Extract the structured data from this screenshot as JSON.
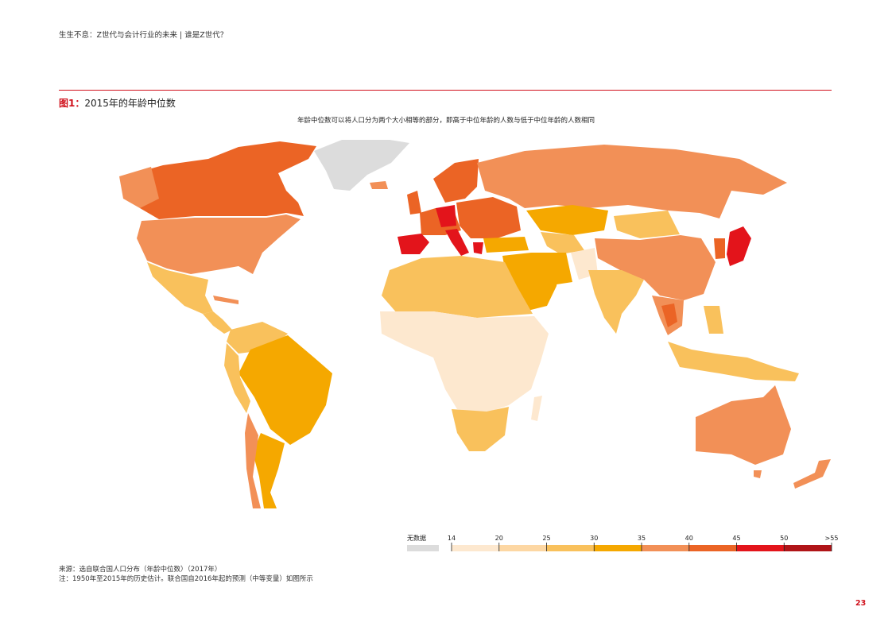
{
  "header": {
    "text": "生生不息：Z世代与会计行业的未来 | 谁是Z世代？"
  },
  "figure": {
    "label": "图1：",
    "title": "2015年的年龄中位数",
    "subtitle": "年龄中位数可以将人口分为两个大小相等的部分，即高于中位年龄的人数与低于中位年龄的人数相同"
  },
  "legend": {
    "nodata_label": "无数据",
    "nodata_color": "#dcdcdc",
    "ticks": [
      "14",
      "20",
      "25",
      "30",
      "35",
      "40",
      "45",
      "50",
      ">55"
    ],
    "colors": [
      "#fde8cf",
      "#fdd7a3",
      "#f9c15c",
      "#f5a800",
      "#f29057",
      "#eb6425",
      "#e3141b",
      "#b01418"
    ]
  },
  "source": {
    "line1": "来源：选自联合国人口分布（年龄中位数）（2017年）",
    "line2": "注：1950年至2015年的历史估计。联合国自2016年起的预测（中等变量）如图所示"
  },
  "page_number": "23"
}
